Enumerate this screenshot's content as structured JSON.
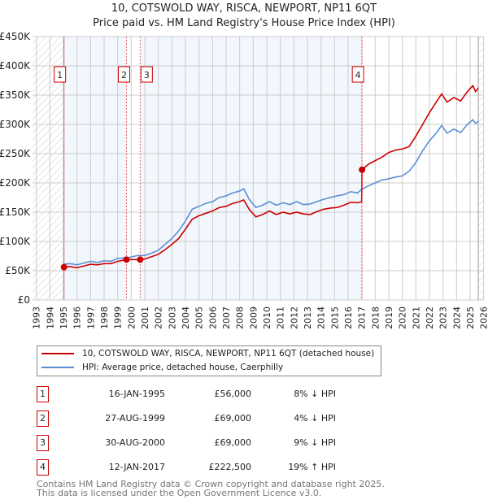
{
  "chart_data": {
    "type": "line",
    "title": "10, COTSWOLD WAY, RISCA, NEWPORT, NP11 6QT",
    "subtitle": "Price paid vs. HM Land Registry's House Price Index (HPI)",
    "xlim": [
      1993,
      2026
    ],
    "ylim": [
      0,
      450000
    ],
    "yticks": [
      "£0",
      "£50K",
      "£100K",
      "£150K",
      "£200K",
      "£250K",
      "£300K",
      "£350K",
      "£400K",
      "£450K"
    ],
    "xticks": [
      "1993",
      "1994",
      "1995",
      "1996",
      "1997",
      "1998",
      "1999",
      "2000",
      "2001",
      "2002",
      "2003",
      "2004",
      "2005",
      "2006",
      "2007",
      "2008",
      "2009",
      "2010",
      "2011",
      "2012",
      "2013",
      "2014",
      "2015",
      "2016",
      "2017",
      "2018",
      "2019",
      "2020",
      "2021",
      "2022",
      "2023",
      "2024",
      "2025",
      "2026"
    ],
    "grid": true,
    "series": [
      {
        "name": "10, COTSWOLD WAY, RISCA, NEWPORT, NP11 6QT (detached house)",
        "color": "#cc0000",
        "points": [
          [
            1995.04,
            56
          ],
          [
            1995.5,
            57
          ],
          [
            1996,
            55
          ],
          [
            1996.5,
            58
          ],
          [
            1997,
            61
          ],
          [
            1997.5,
            60
          ],
          [
            1998,
            62
          ],
          [
            1998.5,
            62
          ],
          [
            1999,
            66
          ],
          [
            1999.65,
            69
          ],
          [
            2000,
            69
          ],
          [
            2000.66,
            69
          ],
          [
            2001,
            70
          ],
          [
            2001.5,
            74
          ],
          [
            2002,
            78
          ],
          [
            2002.5,
            86
          ],
          [
            2003,
            95
          ],
          [
            2003.5,
            105
          ],
          [
            2004,
            121
          ],
          [
            2004.5,
            138
          ],
          [
            2005,
            144
          ],
          [
            2005.5,
            148
          ],
          [
            2006,
            152
          ],
          [
            2006.5,
            158
          ],
          [
            2007,
            160
          ],
          [
            2007.5,
            165
          ],
          [
            2008,
            168
          ],
          [
            2008.3,
            171
          ],
          [
            2008.7,
            155
          ],
          [
            2009.2,
            142
          ],
          [
            2009.7,
            146
          ],
          [
            2010.2,
            152
          ],
          [
            2010.7,
            146
          ],
          [
            2011.2,
            150
          ],
          [
            2011.7,
            147
          ],
          [
            2012.2,
            150
          ],
          [
            2012.7,
            147
          ],
          [
            2013.2,
            146
          ],
          [
            2013.7,
            151
          ],
          [
            2014.2,
            155
          ],
          [
            2014.7,
            157
          ],
          [
            2015.2,
            158
          ],
          [
            2015.7,
            162
          ],
          [
            2016.2,
            167
          ],
          [
            2016.7,
            166
          ],
          [
            2017.0,
            168
          ],
          [
            2017.03,
            222.5
          ],
          [
            2017.5,
            232
          ],
          [
            2018,
            238
          ],
          [
            2018.5,
            244
          ],
          [
            2019,
            252
          ],
          [
            2019.5,
            256
          ],
          [
            2020,
            258
          ],
          [
            2020.5,
            262
          ],
          [
            2021,
            280
          ],
          [
            2021.5,
            300
          ],
          [
            2022,
            320
          ],
          [
            2022.5,
            338
          ],
          [
            2022.9,
            352
          ],
          [
            2023.3,
            338
          ],
          [
            2023.8,
            346
          ],
          [
            2024.3,
            340
          ],
          [
            2024.8,
            356
          ],
          [
            2025.2,
            366
          ],
          [
            2025.4,
            356
          ],
          [
            2025.6,
            362
          ]
        ]
      },
      {
        "name": "HPI: Average price, detached house, Caerphilly",
        "color": "#5b8fd4",
        "points": [
          [
            1995,
            61
          ],
          [
            1995.5,
            62
          ],
          [
            1996,
            60
          ],
          [
            1996.5,
            63
          ],
          [
            1997,
            66
          ],
          [
            1997.5,
            64
          ],
          [
            1998,
            67
          ],
          [
            1998.5,
            66
          ],
          [
            1999,
            71
          ],
          [
            1999.7,
            72
          ],
          [
            2000.5,
            76
          ],
          [
            2001,
            76
          ],
          [
            2001.5,
            80
          ],
          [
            2002,
            85
          ],
          [
            2002.5,
            95
          ],
          [
            2003,
            105
          ],
          [
            2003.5,
            118
          ],
          [
            2004,
            135
          ],
          [
            2004.5,
            155
          ],
          [
            2005,
            160
          ],
          [
            2005.5,
            165
          ],
          [
            2006,
            168
          ],
          [
            2006.5,
            175
          ],
          [
            2007,
            178
          ],
          [
            2007.5,
            183
          ],
          [
            2008,
            186
          ],
          [
            2008.3,
            190
          ],
          [
            2008.7,
            172
          ],
          [
            2009.2,
            158
          ],
          [
            2009.7,
            162
          ],
          [
            2010.2,
            168
          ],
          [
            2010.7,
            162
          ],
          [
            2011.2,
            166
          ],
          [
            2011.7,
            163
          ],
          [
            2012.2,
            168
          ],
          [
            2012.7,
            163
          ],
          [
            2013.2,
            164
          ],
          [
            2013.7,
            168
          ],
          [
            2014.2,
            172
          ],
          [
            2014.7,
            175
          ],
          [
            2015.2,
            178
          ],
          [
            2015.7,
            180
          ],
          [
            2016.2,
            185
          ],
          [
            2016.7,
            183
          ],
          [
            2017,
            189
          ],
          [
            2017.5,
            195
          ],
          [
            2018,
            200
          ],
          [
            2018.5,
            205
          ],
          [
            2019,
            207
          ],
          [
            2019.5,
            210
          ],
          [
            2020,
            212
          ],
          [
            2020.5,
            220
          ],
          [
            2021,
            235
          ],
          [
            2021.5,
            255
          ],
          [
            2022,
            272
          ],
          [
            2022.5,
            285
          ],
          [
            2022.9,
            298
          ],
          [
            2023.3,
            285
          ],
          [
            2023.8,
            292
          ],
          [
            2024.3,
            286
          ],
          [
            2024.8,
            300
          ],
          [
            2025.2,
            308
          ],
          [
            2025.4,
            302
          ],
          [
            2025.6,
            305
          ]
        ]
      }
    ],
    "value_unit": "thousands GBP",
    "sales": [
      {
        "num": "1",
        "year": 1995.04,
        "value": 56
      },
      {
        "num": "2",
        "year": 1999.65,
        "value": 69
      },
      {
        "num": "3",
        "year": 2000.66,
        "value": 69
      },
      {
        "num": "4",
        "year": 2017.03,
        "value": 222.5
      }
    ],
    "legend_placement": "below"
  },
  "legend": {
    "red": "10, COTSWOLD WAY, RISCA, NEWPORT, NP11 6QT (detached house)",
    "blue": "HPI: Average price, detached house, Caerphilly"
  },
  "transactions": [
    {
      "num": "1",
      "date": "16-JAN-1995",
      "price": "£56,000",
      "hpi": "8% ↓ HPI"
    },
    {
      "num": "2",
      "date": "27-AUG-1999",
      "price": "£69,000",
      "hpi": "4% ↓ HPI"
    },
    {
      "num": "3",
      "date": "30-AUG-2000",
      "price": "£69,000",
      "hpi": "9% ↓ HPI"
    },
    {
      "num": "4",
      "date": "12-JAN-2017",
      "price": "£222,500",
      "hpi": "19% ↑ HPI"
    }
  ],
  "footer": {
    "line1": "Contains HM Land Registry data © Crown copyright and database right 2025.",
    "line2": "This data is licensed under the Open Government Licence v3.0."
  }
}
